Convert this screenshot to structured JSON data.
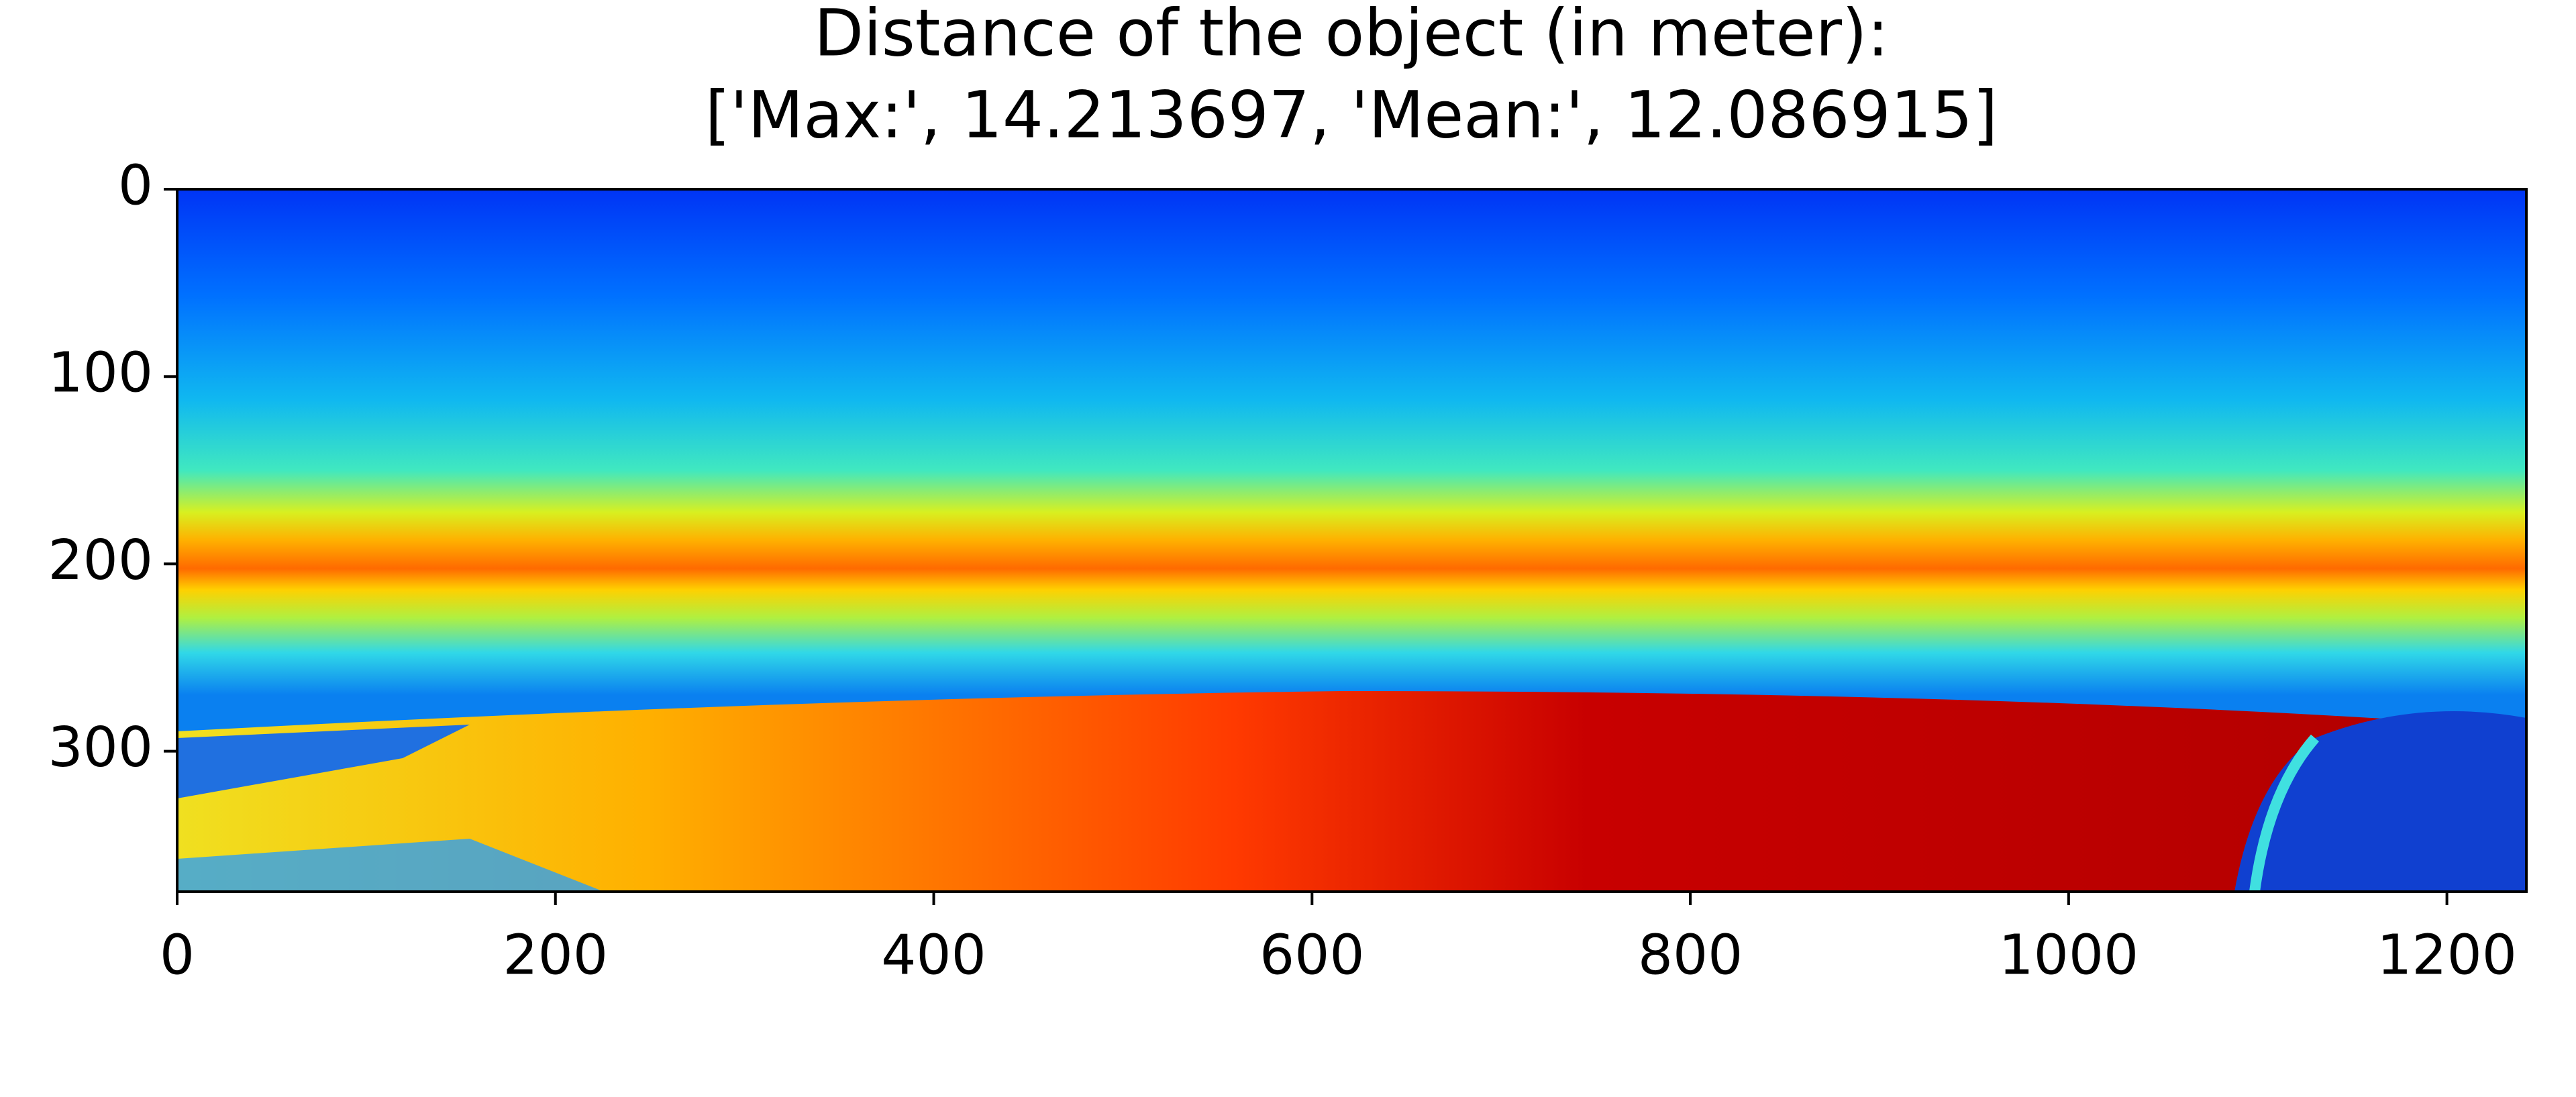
{
  "chart_data": {
    "type": "image",
    "title": [
      "Distance of the object (in meter):",
      "['Max:', 14.213697, 'Mean:', 12.086915]"
    ],
    "xlim": [
      0,
      1242
    ],
    "xticks": [
      0,
      200,
      400,
      600,
      800,
      1000,
      1200
    ],
    "ylim": [
      375,
      0
    ],
    "yticks": [
      0,
      100,
      200,
      300
    ]
  }
}
